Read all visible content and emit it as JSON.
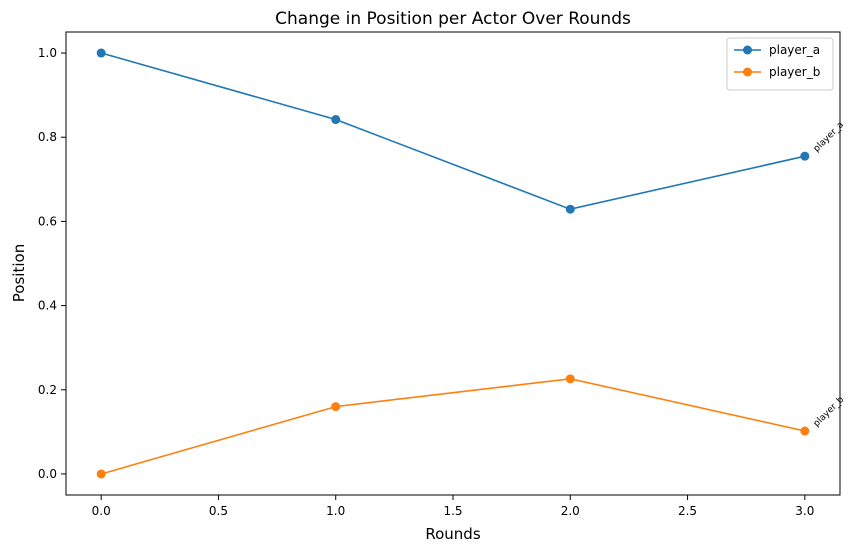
{
  "chart_data": {
    "type": "line",
    "title": "Change in Position per Actor Over Rounds",
    "xlabel": "Rounds",
    "ylabel": "Position",
    "xlim": [
      -0.15,
      3.15
    ],
    "ylim": [
      -0.05,
      1.05
    ],
    "x_ticks": [
      "0.0",
      "0.5",
      "1.0",
      "1.5",
      "2.0",
      "2.5",
      "3.0"
    ],
    "y_ticks": [
      "0.0",
      "0.2",
      "0.4",
      "0.6",
      "0.8",
      "1.0"
    ],
    "grid": false,
    "legend_position": "top-right",
    "x": [
      0,
      1,
      2,
      3
    ],
    "series": [
      {
        "name": "player_a",
        "color": "#1f77b4",
        "values": [
          1.0,
          0.842,
          0.629,
          0.755
        ],
        "end_label": "player_a"
      },
      {
        "name": "player_b",
        "color": "#ff7f0e",
        "values": [
          0.0,
          0.16,
          0.226,
          0.102
        ],
        "end_label": "player_b"
      }
    ]
  }
}
